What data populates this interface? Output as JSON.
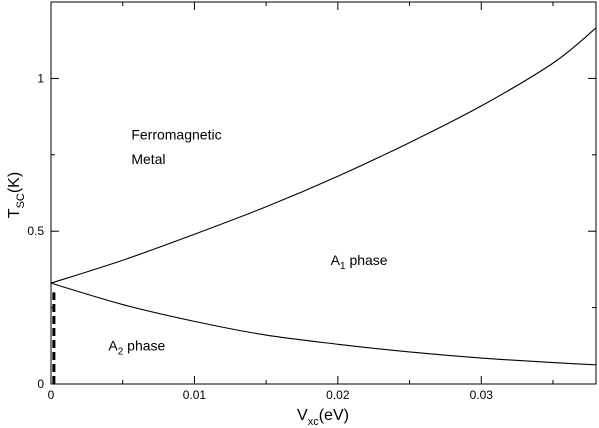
{
  "chart_data": {
    "type": "line",
    "title": "",
    "xlabel": {
      "main": "V",
      "sub": "xc",
      "unit": "(eV)"
    },
    "ylabel": {
      "main": "T",
      "sub": "SC",
      "unit": "(K)"
    },
    "xlim": [
      0,
      0.038
    ],
    "ylim": [
      0,
      1.25
    ],
    "x_ticks": [
      0,
      0.01,
      0.02,
      0.03
    ],
    "x_tick_labels": [
      "0",
      "0.01",
      "0.02",
      "0.03"
    ],
    "y_ticks": [
      0,
      0.5,
      1
    ],
    "y_tick_labels": [
      "0",
      "0.5",
      "1"
    ],
    "grid": false,
    "legend": "none",
    "series": [
      {
        "style": "solid",
        "x": [
          0,
          0.005,
          0.01,
          0.015,
          0.02,
          0.025,
          0.03,
          0.035,
          0.038
        ],
        "y": [
          0.33,
          0.405,
          0.49,
          0.58,
          0.68,
          0.79,
          0.91,
          1.05,
          1.165
        ]
      },
      {
        "style": "solid",
        "x": [
          0,
          0.005,
          0.01,
          0.015,
          0.02,
          0.025,
          0.03,
          0.035,
          0.038
        ],
        "y": [
          0.33,
          0.26,
          0.205,
          0.16,
          0.13,
          0.105,
          0.085,
          0.07,
          0.063
        ]
      },
      {
        "style": "dashed",
        "x": [
          0.0002,
          0.0002
        ],
        "y": [
          0,
          0.3
        ]
      }
    ],
    "annotations": [
      {
        "id": "fm-line1",
        "text": "Ferromagnetic",
        "x": 0.0056,
        "y": 0.8
      },
      {
        "id": "fm-line2",
        "text": "Metal",
        "x": 0.0056,
        "y": 0.72
      },
      {
        "id": "a1",
        "main": "A",
        "sub": "1",
        "rest": " phase",
        "x": 0.0195,
        "y": 0.39
      },
      {
        "id": "a2",
        "main": "A",
        "sub": "2",
        "rest": " phase",
        "x": 0.004,
        "y": 0.11
      }
    ]
  }
}
